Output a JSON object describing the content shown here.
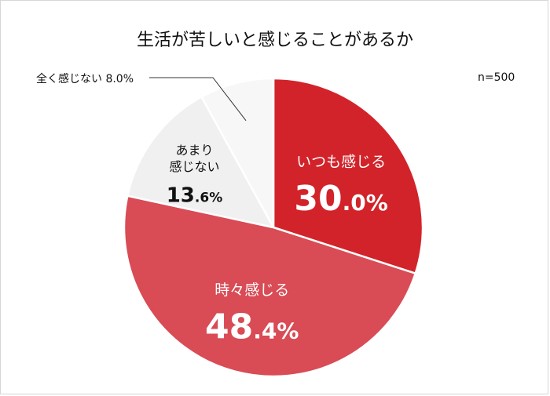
{
  "chart_data": {
    "type": "pie",
    "title": "生活が苦しいと感じることがあるか",
    "note": "n=500",
    "slices": [
      {
        "label": "いつも感じる",
        "label_lines": [
          "いつも感じる"
        ],
        "int": "30",
        "dec": ".0%",
        "value": 30.0,
        "color": "#d2232a"
      },
      {
        "label": "時々感じる",
        "label_lines": [
          "時々感じる"
        ],
        "int": "48",
        "dec": ".4%",
        "value": 48.4,
        "color": "#d94b55"
      },
      {
        "label": "あまり感じない",
        "label_lines": [
          "あまり",
          "感じない"
        ],
        "int": "13",
        "dec": ".6%",
        "value": 13.6,
        "color": "#f0f0f0"
      },
      {
        "label": "全く感じない",
        "label_lines": [
          "全く感じない"
        ],
        "int": "8",
        "dec": ".0%",
        "value": 8.0,
        "color": "#f7f7f7",
        "callout": "全く感じない 8.0%"
      }
    ]
  }
}
